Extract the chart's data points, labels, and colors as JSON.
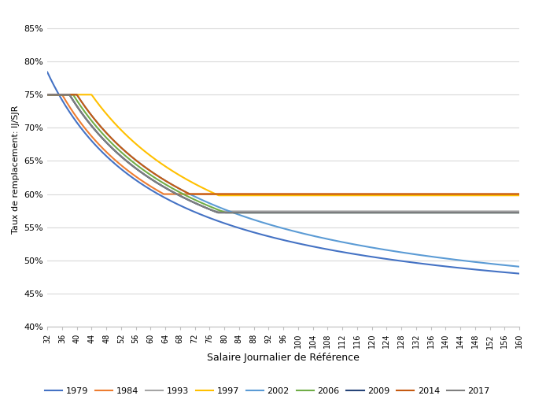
{
  "title": "",
  "xlabel": "Salaire Journalier de Référence",
  "ylabel": "Taux de remplacement: IJ/SJR",
  "xlim": [
    32,
    160
  ],
  "ylim": [
    0.4,
    0.875
  ],
  "yticks": [
    0.4,
    0.45,
    0.5,
    0.55,
    0.6,
    0.65,
    0.7,
    0.75,
    0.8,
    0.85
  ],
  "xticks": [
    32,
    36,
    40,
    44,
    48,
    52,
    56,
    60,
    64,
    68,
    72,
    76,
    80,
    84,
    88,
    92,
    96,
    100,
    104,
    108,
    112,
    116,
    120,
    124,
    128,
    132,
    136,
    140,
    144,
    148,
    152,
    156,
    160
  ],
  "series": [
    {
      "year": 1979,
      "color": "#4472C4",
      "lw": 1.5,
      "a": 0.404,
      "b": 12.12,
      "cap": 1.0,
      "floor": 0.0
    },
    {
      "year": 1984,
      "color": "#ED7D31",
      "lw": 1.5,
      "a": 0.404,
      "b": 11.84,
      "cap": 0.75,
      "floor": 0.6
    },
    {
      "year": 1993,
      "color": "#A5A5A5",
      "lw": 1.5,
      "a": 0.404,
      "b": 11.84,
      "cap": 0.75,
      "floor": 0.574
    },
    {
      "year": 1997,
      "color": "#FFC000",
      "lw": 1.5,
      "a": 0.404,
      "b": 11.84,
      "cap": 0.75,
      "floor": 0.598
    },
    {
      "year": 2002,
      "color": "#5B9BD5",
      "lw": 1.5,
      "a": 0.404,
      "b": 11.84,
      "cap": 0.75,
      "floor": 0.0
    },
    {
      "year": 2006,
      "color": "#70AD47",
      "lw": 1.5,
      "a": 0.404,
      "b": 11.84,
      "cap": 0.75,
      "floor": 0.572
    },
    {
      "year": 2009,
      "color": "#264478",
      "lw": 1.5,
      "a": 0.404,
      "b": 11.84,
      "cap": 0.75,
      "floor": 0.572
    },
    {
      "year": 2014,
      "color": "#C55A11",
      "lw": 1.5,
      "a": 0.404,
      "b": 11.84,
      "cap": 0.75,
      "floor": 0.6
    },
    {
      "year": 2017,
      "color": "#7F7F7F",
      "lw": 1.5,
      "a": 0.404,
      "b": 11.84,
      "cap": 0.75,
      "floor": 0.572
    }
  ],
  "legend_labels": [
    "1979",
    "1984",
    "1993",
    "1997",
    "2002",
    "2006",
    "2009",
    "2014",
    "2017"
  ],
  "background_color": "#FFFFFF",
  "grid_color": "#D9D9D9"
}
